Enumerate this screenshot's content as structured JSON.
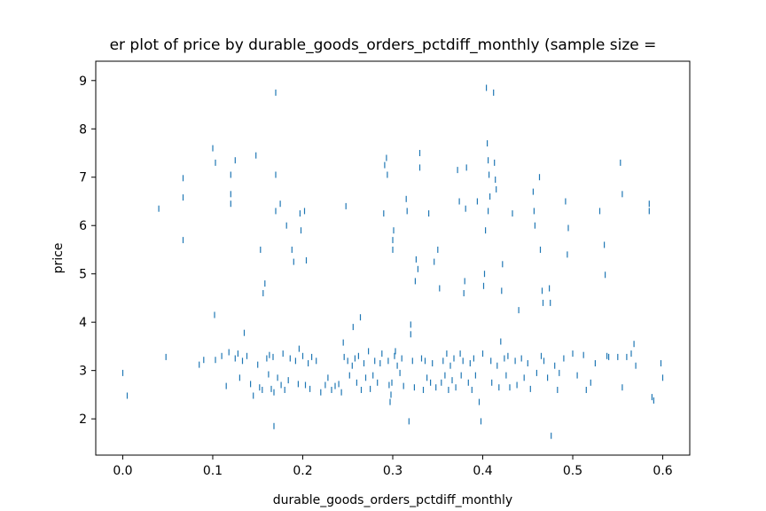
{
  "chart_data": {
    "type": "scatter",
    "title": "er plot of price by durable_goods_orders_pctdiff_monthly (sample size =",
    "xlabel": "durable_goods_orders_pctdiff_monthly",
    "ylabel": "price",
    "xlim": [
      -0.03,
      0.63
    ],
    "ylim": [
      1.25,
      9.4
    ],
    "xticks": [
      0.0,
      0.1,
      0.2,
      0.3,
      0.4,
      0.5,
      0.6
    ],
    "xtick_labels": [
      "0.0",
      "0.1",
      "0.2",
      "0.3",
      "0.4",
      "0.5",
      "0.6"
    ],
    "yticks": [
      2,
      3,
      4,
      5,
      6,
      7,
      8,
      9
    ],
    "ytick_labels": [
      "2",
      "3",
      "4",
      "5",
      "6",
      "7",
      "8",
      "9"
    ],
    "grid": false,
    "marker": "|",
    "color": "#1f77b4",
    "points": [
      [
        0.0,
        2.95
      ],
      [
        0.005,
        2.48
      ],
      [
        0.04,
        6.35
      ],
      [
        0.048,
        3.28
      ],
      [
        0.067,
        6.58
      ],
      [
        0.067,
        6.98
      ],
      [
        0.067,
        5.7
      ],
      [
        0.085,
        3.12
      ],
      [
        0.09,
        3.22
      ],
      [
        0.1,
        7.6
      ],
      [
        0.103,
        7.3
      ],
      [
        0.102,
        4.15
      ],
      [
        0.103,
        3.22
      ],
      [
        0.11,
        3.3
      ],
      [
        0.115,
        2.68
      ],
      [
        0.118,
        3.38
      ],
      [
        0.12,
        7.05
      ],
      [
        0.12,
        6.65
      ],
      [
        0.12,
        6.45
      ],
      [
        0.125,
        7.35
      ],
      [
        0.125,
        3.25
      ],
      [
        0.128,
        3.35
      ],
      [
        0.13,
        2.85
      ],
      [
        0.133,
        3.2
      ],
      [
        0.135,
        3.78
      ],
      [
        0.138,
        3.3
      ],
      [
        0.142,
        2.72
      ],
      [
        0.145,
        2.48
      ],
      [
        0.148,
        7.45
      ],
      [
        0.15,
        3.12
      ],
      [
        0.152,
        2.65
      ],
      [
        0.153,
        5.5
      ],
      [
        0.155,
        2.6
      ],
      [
        0.156,
        4.6
      ],
      [
        0.158,
        4.8
      ],
      [
        0.16,
        3.25
      ],
      [
        0.162,
        2.92
      ],
      [
        0.163,
        3.32
      ],
      [
        0.165,
        2.62
      ],
      [
        0.167,
        3.28
      ],
      [
        0.168,
        2.55
      ],
      [
        0.168,
        1.85
      ],
      [
        0.17,
        8.75
      ],
      [
        0.17,
        7.05
      ],
      [
        0.17,
        6.3
      ],
      [
        0.172,
        2.85
      ],
      [
        0.175,
        6.45
      ],
      [
        0.176,
        2.7
      ],
      [
        0.178,
        3.35
      ],
      [
        0.18,
        2.6
      ],
      [
        0.182,
        6.0
      ],
      [
        0.184,
        2.8
      ],
      [
        0.186,
        3.25
      ],
      [
        0.188,
        5.5
      ],
      [
        0.19,
        5.25
      ],
      [
        0.192,
        3.2
      ],
      [
        0.195,
        2.72
      ],
      [
        0.196,
        3.45
      ],
      [
        0.197,
        6.25
      ],
      [
        0.198,
        5.9
      ],
      [
        0.2,
        3.3
      ],
      [
        0.202,
        6.3
      ],
      [
        0.203,
        2.7
      ],
      [
        0.204,
        5.28
      ],
      [
        0.206,
        3.15
      ],
      [
        0.208,
        2.62
      ],
      [
        0.21,
        3.28
      ],
      [
        0.215,
        3.2
      ],
      [
        0.22,
        2.55
      ],
      [
        0.225,
        2.7
      ],
      [
        0.228,
        2.85
      ],
      [
        0.232,
        2.6
      ],
      [
        0.236,
        2.68
      ],
      [
        0.24,
        2.72
      ],
      [
        0.243,
        2.55
      ],
      [
        0.245,
        3.58
      ],
      [
        0.246,
        3.28
      ],
      [
        0.248,
        6.4
      ],
      [
        0.25,
        3.2
      ],
      [
        0.252,
        2.9
      ],
      [
        0.255,
        3.1
      ],
      [
        0.256,
        3.9
      ],
      [
        0.258,
        3.25
      ],
      [
        0.26,
        2.75
      ],
      [
        0.262,
        3.3
      ],
      [
        0.264,
        4.1
      ],
      [
        0.265,
        2.6
      ],
      [
        0.268,
        3.15
      ],
      [
        0.27,
        2.85
      ],
      [
        0.273,
        3.4
      ],
      [
        0.275,
        2.62
      ],
      [
        0.278,
        2.9
      ],
      [
        0.28,
        3.2
      ],
      [
        0.283,
        2.75
      ],
      [
        0.286,
        3.15
      ],
      [
        0.288,
        3.35
      ],
      [
        0.29,
        6.25
      ],
      [
        0.291,
        7.25
      ],
      [
        0.293,
        7.4
      ],
      [
        0.294,
        7.05
      ],
      [
        0.295,
        3.2
      ],
      [
        0.296,
        2.7
      ],
      [
        0.297,
        2.35
      ],
      [
        0.298,
        2.5
      ],
      [
        0.299,
        2.75
      ],
      [
        0.3,
        5.7
      ],
      [
        0.3,
        5.5
      ],
      [
        0.301,
        5.9
      ],
      [
        0.302,
        3.3
      ],
      [
        0.303,
        3.4
      ],
      [
        0.305,
        3.1
      ],
      [
        0.308,
        2.95
      ],
      [
        0.31,
        3.25
      ],
      [
        0.312,
        2.68
      ],
      [
        0.315,
        6.55
      ],
      [
        0.316,
        6.3
      ],
      [
        0.318,
        1.95
      ],
      [
        0.32,
        3.95
      ],
      [
        0.32,
        3.75
      ],
      [
        0.322,
        3.2
      ],
      [
        0.324,
        2.65
      ],
      [
        0.325,
        4.85
      ],
      [
        0.326,
        5.3
      ],
      [
        0.328,
        5.1
      ],
      [
        0.33,
        7.5
      ],
      [
        0.33,
        7.2
      ],
      [
        0.332,
        3.25
      ],
      [
        0.334,
        2.6
      ],
      [
        0.336,
        3.2
      ],
      [
        0.338,
        2.85
      ],
      [
        0.34,
        6.25
      ],
      [
        0.342,
        2.75
      ],
      [
        0.344,
        3.15
      ],
      [
        0.346,
        5.25
      ],
      [
        0.348,
        2.65
      ],
      [
        0.35,
        5.5
      ],
      [
        0.352,
        4.7
      ],
      [
        0.354,
        2.75
      ],
      [
        0.356,
        3.2
      ],
      [
        0.358,
        2.9
      ],
      [
        0.36,
        3.35
      ],
      [
        0.362,
        2.6
      ],
      [
        0.364,
        3.1
      ],
      [
        0.366,
        2.8
      ],
      [
        0.368,
        3.25
      ],
      [
        0.37,
        2.65
      ],
      [
        0.372,
        7.15
      ],
      [
        0.374,
        6.5
      ],
      [
        0.375,
        3.35
      ],
      [
        0.376,
        2.9
      ],
      [
        0.378,
        3.2
      ],
      [
        0.379,
        4.6
      ],
      [
        0.38,
        4.85
      ],
      [
        0.381,
        6.35
      ],
      [
        0.382,
        7.2
      ],
      [
        0.384,
        2.75
      ],
      [
        0.386,
        3.15
      ],
      [
        0.388,
        2.6
      ],
      [
        0.39,
        3.25
      ],
      [
        0.392,
        2.9
      ],
      [
        0.394,
        6.5
      ],
      [
        0.396,
        2.35
      ],
      [
        0.398,
        1.95
      ],
      [
        0.4,
        3.35
      ],
      [
        0.401,
        4.75
      ],
      [
        0.402,
        5.0
      ],
      [
        0.403,
        5.9
      ],
      [
        0.404,
        8.85
      ],
      [
        0.405,
        7.7
      ],
      [
        0.406,
        7.35
      ],
      [
        0.406,
        6.3
      ],
      [
        0.407,
        7.05
      ],
      [
        0.408,
        6.6
      ],
      [
        0.409,
        3.2
      ],
      [
        0.41,
        2.75
      ],
      [
        0.412,
        8.75
      ],
      [
        0.413,
        7.3
      ],
      [
        0.414,
        6.95
      ],
      [
        0.415,
        6.75
      ],
      [
        0.416,
        3.1
      ],
      [
        0.418,
        2.65
      ],
      [
        0.42,
        3.6
      ],
      [
        0.421,
        4.65
      ],
      [
        0.422,
        5.2
      ],
      [
        0.424,
        3.25
      ],
      [
        0.426,
        2.9
      ],
      [
        0.428,
        3.3
      ],
      [
        0.43,
        2.65
      ],
      [
        0.433,
        6.25
      ],
      [
        0.436,
        3.2
      ],
      [
        0.438,
        2.7
      ],
      [
        0.44,
        4.25
      ],
      [
        0.443,
        3.25
      ],
      [
        0.446,
        2.85
      ],
      [
        0.45,
        3.15
      ],
      [
        0.453,
        2.62
      ],
      [
        0.456,
        6.7
      ],
      [
        0.457,
        6.3
      ],
      [
        0.458,
        6.0
      ],
      [
        0.46,
        2.95
      ],
      [
        0.463,
        7.0
      ],
      [
        0.464,
        5.5
      ],
      [
        0.465,
        3.3
      ],
      [
        0.466,
        4.65
      ],
      [
        0.467,
        4.4
      ],
      [
        0.468,
        3.2
      ],
      [
        0.472,
        2.85
      ],
      [
        0.474,
        4.7
      ],
      [
        0.475,
        4.4
      ],
      [
        0.476,
        1.65
      ],
      [
        0.48,
        3.1
      ],
      [
        0.483,
        2.6
      ],
      [
        0.485,
        2.95
      ],
      [
        0.49,
        3.25
      ],
      [
        0.492,
        6.5
      ],
      [
        0.494,
        5.4
      ],
      [
        0.495,
        5.95
      ],
      [
        0.5,
        3.35
      ],
      [
        0.505,
        2.9
      ],
      [
        0.512,
        3.32
      ],
      [
        0.515,
        2.6
      ],
      [
        0.52,
        2.75
      ],
      [
        0.525,
        3.15
      ],
      [
        0.53,
        6.3
      ],
      [
        0.535,
        5.6
      ],
      [
        0.536,
        4.98
      ],
      [
        0.538,
        3.3
      ],
      [
        0.54,
        3.28
      ],
      [
        0.55,
        3.28
      ],
      [
        0.553,
        7.3
      ],
      [
        0.555,
        6.65
      ],
      [
        0.555,
        2.65
      ],
      [
        0.56,
        3.28
      ],
      [
        0.565,
        3.35
      ],
      [
        0.568,
        3.55
      ],
      [
        0.57,
        3.1
      ],
      [
        0.585,
        6.3
      ],
      [
        0.585,
        6.45
      ],
      [
        0.588,
        2.45
      ],
      [
        0.59,
        2.38
      ],
      [
        0.598,
        3.15
      ],
      [
        0.6,
        2.85
      ]
    ]
  }
}
